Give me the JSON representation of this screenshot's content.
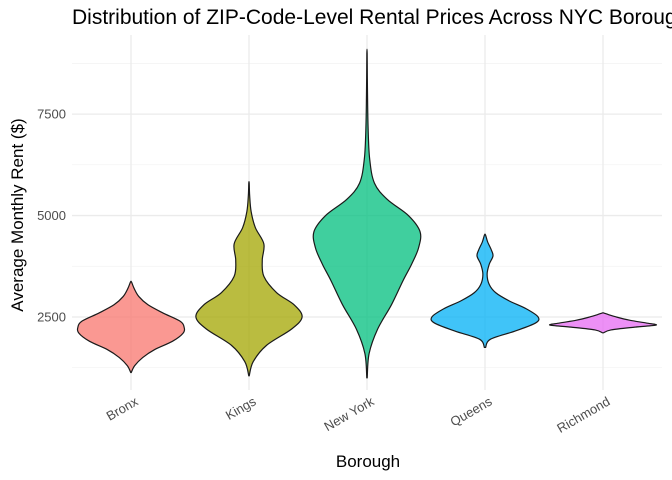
{
  "chart_data": {
    "type": "violin",
    "title": "Distribution of ZIP-Code-Level Rental Prices Across NYC Boroughs",
    "xlabel": "Borough",
    "ylabel": "Average Monthly Rent ($)",
    "ylim": [
      700,
      9450
    ],
    "yticks": [
      2500,
      5000,
      7500
    ],
    "yticks_labels": [
      "2500",
      "5000",
      "7500"
    ],
    "y_minor_ticks": [
      1250,
      3750,
      6250,
      8750
    ],
    "grid": true,
    "legend": "none",
    "categories": [
      "Bronx",
      "Kings",
      "New York",
      "Queens",
      "Richmond"
    ],
    "series": [
      {
        "category": "Bronx",
        "color": "#F8766D",
        "min": 1130,
        "max": 3360,
        "profile": [
          [
            1130,
            0.004
          ],
          [
            1300,
            0.07
          ],
          [
            1500,
            0.22
          ],
          [
            1700,
            0.45
          ],
          [
            1900,
            0.78
          ],
          [
            2100,
            0.98
          ],
          [
            2250,
            1.0
          ],
          [
            2400,
            0.92
          ],
          [
            2600,
            0.6
          ],
          [
            2800,
            0.32
          ],
          [
            3000,
            0.15
          ],
          [
            3200,
            0.06
          ],
          [
            3360,
            0.01
          ]
        ]
      },
      {
        "category": "Kings",
        "color": "#A3A500",
        "min": 1050,
        "max": 5800,
        "profile": [
          [
            1050,
            0.004
          ],
          [
            1400,
            0.08
          ],
          [
            1800,
            0.33
          ],
          [
            2200,
            0.8
          ],
          [
            2500,
            1.0
          ],
          [
            2800,
            0.85
          ],
          [
            3100,
            0.52
          ],
          [
            3500,
            0.28
          ],
          [
            3900,
            0.25
          ],
          [
            4300,
            0.28
          ],
          [
            4700,
            0.12
          ],
          [
            5100,
            0.04
          ],
          [
            5500,
            0.012
          ],
          [
            5800,
            0.004
          ]
        ]
      },
      {
        "category": "New York",
        "color": "#00BF7D",
        "min": 1000,
        "max": 9000,
        "profile": [
          [
            1000,
            0.004
          ],
          [
            1600,
            0.04
          ],
          [
            2200,
            0.2
          ],
          [
            2800,
            0.46
          ],
          [
            3400,
            0.68
          ],
          [
            3800,
            0.84
          ],
          [
            4200,
            0.97
          ],
          [
            4600,
            1.0
          ],
          [
            5000,
            0.78
          ],
          [
            5400,
            0.38
          ],
          [
            5800,
            0.14
          ],
          [
            6400,
            0.05
          ],
          [
            7200,
            0.02
          ],
          [
            8200,
            0.008
          ],
          [
            9000,
            0.003
          ]
        ]
      },
      {
        "category": "Queens",
        "color": "#00B0F6",
        "min": 1750,
        "max": 4520,
        "profile": [
          [
            1750,
            0.012
          ],
          [
            1950,
            0.1
          ],
          [
            2150,
            0.56
          ],
          [
            2350,
            0.95
          ],
          [
            2500,
            1.0
          ],
          [
            2700,
            0.78
          ],
          [
            2900,
            0.45
          ],
          [
            3100,
            0.2
          ],
          [
            3300,
            0.08
          ],
          [
            3550,
            0.04
          ],
          [
            3800,
            0.08
          ],
          [
            4000,
            0.15
          ],
          [
            4150,
            0.12
          ],
          [
            4350,
            0.05
          ],
          [
            4520,
            0.01
          ]
        ]
      },
      {
        "category": "Richmond",
        "color": "#E76BF3",
        "min": 2110,
        "max": 2600,
        "profile": [
          [
            2110,
            0.01
          ],
          [
            2180,
            0.15
          ],
          [
            2250,
            0.6
          ],
          [
            2300,
            1.0
          ],
          [
            2350,
            0.82
          ],
          [
            2420,
            0.5
          ],
          [
            2500,
            0.25
          ],
          [
            2560,
            0.1
          ],
          [
            2600,
            0.01
          ]
        ]
      }
    ]
  }
}
